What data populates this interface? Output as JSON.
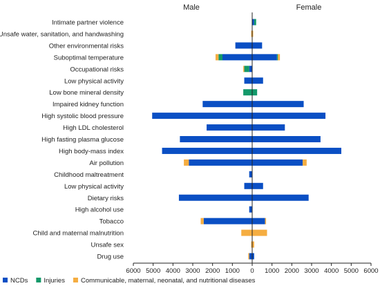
{
  "chart_data": {
    "type": "bar",
    "orientation": "horizontal",
    "layout": "diverging-stacked",
    "side_labels": {
      "left": "Male",
      "right": "Female"
    },
    "categories": [
      "Intimate partner violence",
      "Unsafe water, sanitation, and handwashing",
      "Other environmental risks",
      "Suboptimal temperature",
      "Occupational risks",
      "Low physical activity",
      "Low bone mineral density",
      "Impaired kidney function",
      "High systolic blood pressure",
      "High LDL cholesterol",
      "High fasting plasma glucose",
      "High body-mass index",
      "Air pollution",
      "Childhood maltreatment",
      "Low physical activity",
      "Dietary risks",
      "High alcohol use",
      "Tobacco",
      "Child and maternal malnutrition",
      "Unsafe sex",
      "Drug use"
    ],
    "series": [
      {
        "name": "NCDs",
        "color": "#0a4fc4",
        "male": [
          0,
          0,
          850,
          1500,
          150,
          400,
          0,
          2500,
          5050,
          2300,
          3650,
          4550,
          3200,
          150,
          400,
          3700,
          150,
          2450,
          0,
          0,
          150
        ],
        "female": [
          100,
          0,
          500,
          1250,
          0,
          550,
          0,
          2600,
          3700,
          1650,
          3450,
          4500,
          2550,
          0,
          550,
          2850,
          0,
          650,
          0,
          0,
          100
        ]
      },
      {
        "name": "Injuries",
        "color": "#13996a",
        "male": [
          0,
          0,
          0,
          200,
          250,
          0,
          450,
          0,
          0,
          0,
          0,
          0,
          0,
          0,
          0,
          0,
          0,
          0,
          0,
          0,
          0
        ],
        "female": [
          100,
          0,
          0,
          50,
          0,
          0,
          250,
          0,
          0,
          0,
          0,
          0,
          0,
          0,
          0,
          0,
          0,
          0,
          0,
          0,
          0
        ]
      },
      {
        "name": "Communicable, maternal, neonatal, and nutritional diseases",
        "color": "#f5ad41",
        "male": [
          0,
          50,
          0,
          150,
          50,
          0,
          0,
          0,
          0,
          0,
          0,
          0,
          250,
          0,
          0,
          0,
          0,
          150,
          550,
          50,
          50
        ],
        "female": [
          0,
          50,
          0,
          100,
          0,
          0,
          0,
          0,
          0,
          0,
          0,
          0,
          200,
          0,
          0,
          0,
          0,
          50,
          750,
          100,
          0
        ]
      }
    ],
    "x_ticks": [
      "6000",
      "5000",
      "4000",
      "3000",
      "2000",
      "1000",
      "0",
      "1000",
      "2000",
      "3000",
      "4000",
      "5000",
      "6000"
    ],
    "xlim": [
      -6000,
      6000
    ],
    "legend_position": "bottom-left",
    "grid": false
  }
}
